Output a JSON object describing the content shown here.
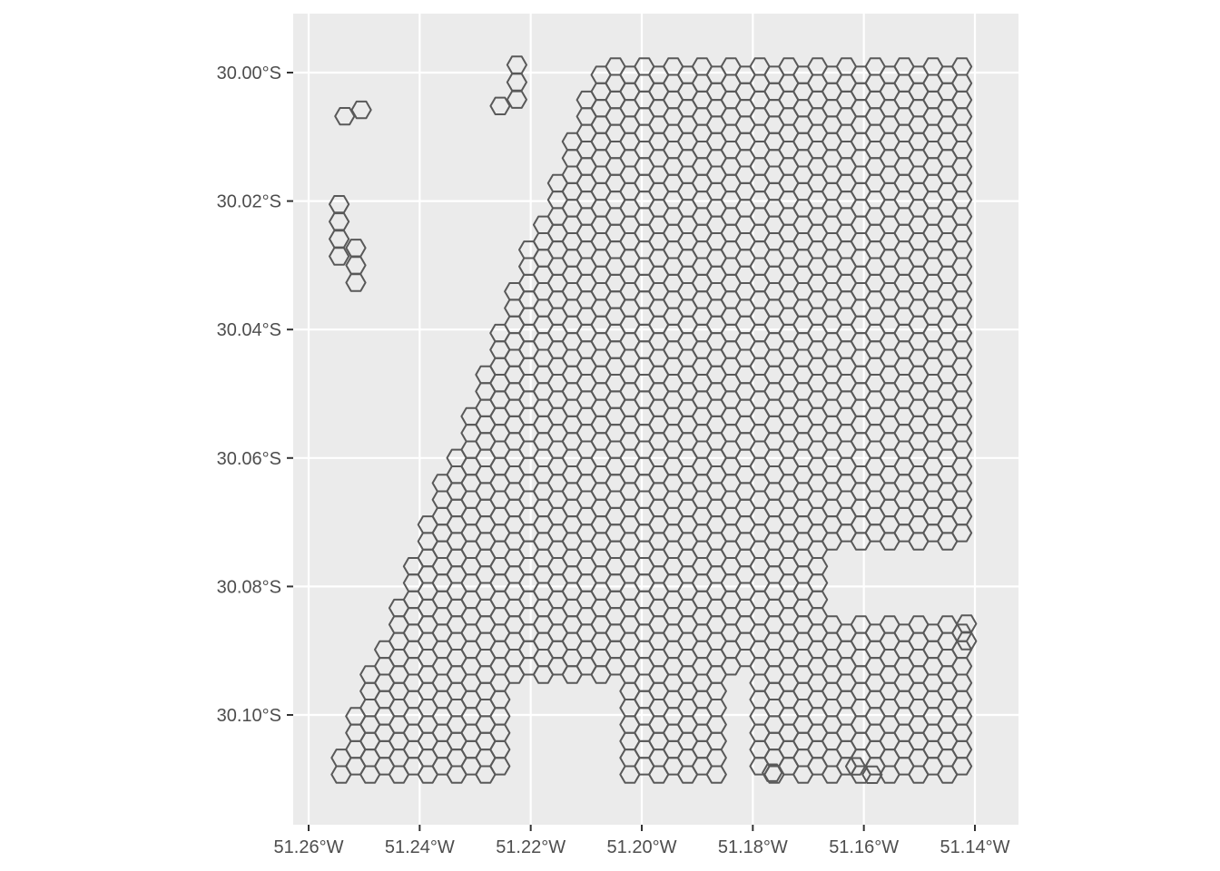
{
  "map": {
    "type": "hexagon-grid",
    "panel_color": "#ebebeb",
    "grid_color": "#ffffff",
    "hex_stroke": "#595959",
    "hex_fill": "none",
    "x_ticks": [
      {
        "value": -51.26,
        "label": "51.26°W"
      },
      {
        "value": -51.24,
        "label": "51.24°W"
      },
      {
        "value": -51.22,
        "label": "51.22°W"
      },
      {
        "value": -51.2,
        "label": "51.20°W"
      },
      {
        "value": -51.18,
        "label": "51.18°W"
      },
      {
        "value": -51.16,
        "label": "51.16°W"
      },
      {
        "value": -51.14,
        "label": "51.14°W"
      }
    ],
    "y_ticks": [
      {
        "value": -30.0,
        "label": "30.00°S"
      },
      {
        "value": -30.02,
        "label": "30.02°S"
      },
      {
        "value": -30.04,
        "label": "30.04°S"
      },
      {
        "value": -30.06,
        "label": "30.06°S"
      },
      {
        "value": -30.08,
        "label": "30.08°S"
      },
      {
        "value": -30.1,
        "label": "30.10°S"
      }
    ],
    "main_region": {
      "bounds": {
        "north": -29.999,
        "south": -30.11,
        "west_top": -51.208,
        "west_bottom": -51.256,
        "east": -51.141
      },
      "notches": [
        {
          "west": -51.223,
          "east": -51.203,
          "north": -30.095,
          "south": -30.111
        },
        {
          "west": -51.186,
          "east": -51.18,
          "north": -30.093,
          "south": -30.111
        },
        {
          "west": -51.166,
          "east": -51.141,
          "north": -30.073,
          "south": -30.085
        }
      ]
    },
    "outlier_hexes": [
      [
        -51.2535,
        -30.0068
      ],
      [
        -51.2505,
        -30.0058
      ],
      [
        -51.2225,
        -29.9988
      ],
      [
        -51.2225,
        -30.0015
      ],
      [
        -51.2225,
        -30.0042
      ],
      [
        -51.2255,
        -30.0052
      ],
      [
        -51.2545,
        -30.0205
      ],
      [
        -51.2545,
        -30.0232
      ],
      [
        -51.2545,
        -30.0259
      ],
      [
        -51.2545,
        -30.0286
      ],
      [
        -51.2515,
        -30.0273
      ],
      [
        -51.2515,
        -30.03
      ],
      [
        -51.2515,
        -30.0327
      ],
      [
        -51.1765,
        -30.109
      ],
      [
        -51.1615,
        -30.108
      ],
      [
        -51.1585,
        -30.1093
      ],
      [
        -51.1415,
        -30.0858
      ],
      [
        -51.1415,
        -30.0885
      ]
    ]
  }
}
